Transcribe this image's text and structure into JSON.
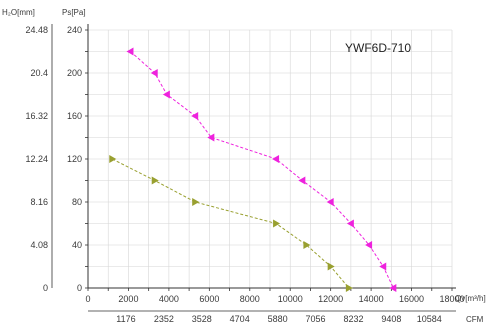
{
  "chart_data": {
    "type": "line",
    "title": "YWF6D-710",
    "xlabel": "Qv[m³/h]",
    "x2label": "CFM",
    "ylabel": "Ps[Pa]",
    "y2label": "H₂O[mm]",
    "xlim": [
      0,
      18000
    ],
    "ylim": [
      0,
      240
    ],
    "x_ticks": [
      0,
      2000,
      4000,
      6000,
      8000,
      10000,
      12000,
      14000,
      16000,
      18000
    ],
    "x_tick_labels": [
      "0",
      "2000",
      "4000",
      "6000",
      "8000",
      "10000",
      "12000",
      "14000",
      "16000",
      "18000"
    ],
    "y_ticks": [
      0,
      40,
      80,
      120,
      160,
      200,
      240
    ],
    "y_tick_labels": [
      "0",
      "40",
      "80",
      "120",
      "160",
      "200",
      "240"
    ],
    "cfm_ticks": [
      3000,
      6000,
      9000,
      12000,
      15000,
      18000,
      21000,
      24000,
      27000
    ],
    "cfm_tick_labels": [
      "1176",
      "2352",
      "3528",
      "4704",
      "5880",
      "7056",
      "8232",
      "9408",
      "10584"
    ],
    "mmh2o_ticks": [
      0,
      40,
      80,
      120,
      160,
      200,
      240
    ],
    "mmh2o_tick_labels": [
      "0",
      "4.08",
      "8.16",
      "12.24",
      "16.32",
      "20.4",
      "24.48"
    ],
    "grid": true,
    "series": [
      {
        "color": "#ee22dd",
        "marker": "left-triangle",
        "x": [
          2100,
          3300,
          3900,
          5300,
          6100,
          9300,
          10600,
          12000,
          13000,
          13900,
          14600,
          15100
        ],
        "y": [
          220,
          200,
          180,
          160,
          140,
          120,
          100,
          80,
          60,
          40,
          20,
          0
        ]
      },
      {
        "color": "#99a030",
        "marker": "right-triangle",
        "x": [
          1200,
          3300,
          5300,
          9300,
          10800,
          12000,
          12900
        ],
        "y": [
          120,
          100,
          80,
          60,
          40,
          20,
          0
        ]
      }
    ]
  }
}
